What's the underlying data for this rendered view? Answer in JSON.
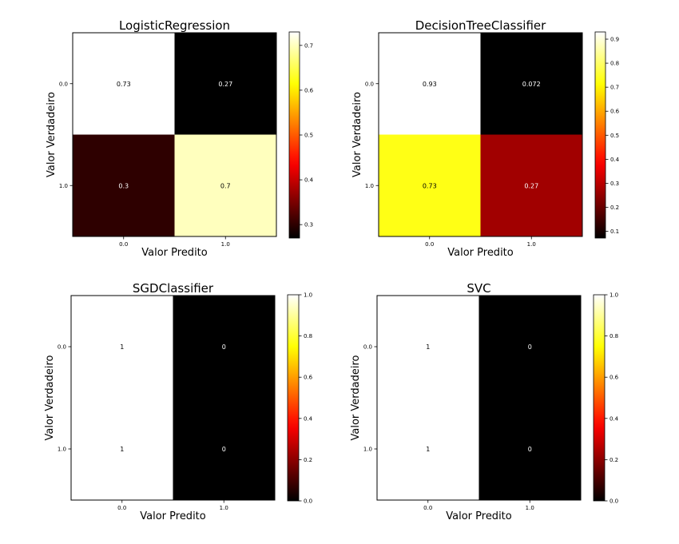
{
  "figure": {
    "xlabel": "Valor Predito",
    "ylabel": "Valor Verdadeiro"
  },
  "colormap": {
    "name": "hot",
    "stops": [
      "#000000",
      "#ff0000",
      "#ffff00",
      "#ffffff"
    ]
  },
  "chart_data": [
    {
      "type": "heatmap",
      "title": "LogisticRegression",
      "xlabel": "Valor Predito",
      "ylabel": "Valor Verdadeiro",
      "x_ticks": [
        "0.0",
        "1.0"
      ],
      "y_ticks": [
        "0.0",
        "1.0"
      ],
      "matrix": [
        [
          0.73,
          0.27
        ],
        [
          0.3,
          0.7
        ]
      ],
      "cell_labels": [
        [
          "0.73",
          "0.27"
        ],
        [
          "0.3",
          "0.7"
        ]
      ],
      "colorbar": {
        "vmin": 0.27,
        "vmax": 0.73,
        "ticks": [
          0.3,
          0.4,
          0.5,
          0.6,
          0.7
        ],
        "tick_labels": [
          "0.3",
          "0.4",
          "0.5",
          "0.6",
          "0.7"
        ]
      }
    },
    {
      "type": "heatmap",
      "title": "DecisionTreeClassifier",
      "xlabel": "Valor Predito",
      "ylabel": "Valor Verdadeiro",
      "x_ticks": [
        "0.0",
        "1.0"
      ],
      "y_ticks": [
        "0.0",
        "1.0"
      ],
      "matrix": [
        [
          0.93,
          0.072
        ],
        [
          0.73,
          0.27
        ]
      ],
      "cell_labels": [
        [
          "0.93",
          "0.072"
        ],
        [
          "0.73",
          "0.27"
        ]
      ],
      "colorbar": {
        "vmin": 0.072,
        "vmax": 0.93,
        "ticks": [
          0.1,
          0.2,
          0.3,
          0.4,
          0.5,
          0.6,
          0.7,
          0.8,
          0.9
        ],
        "tick_labels": [
          "0.1",
          "0.2",
          "0.3",
          "0.4",
          "0.5",
          "0.6",
          "0.7",
          "0.8",
          "0.9"
        ]
      }
    },
    {
      "type": "heatmap",
      "title": "SGDClassifier",
      "xlabel": "Valor Predito",
      "ylabel": "Valor Verdadeiro",
      "x_ticks": [
        "0.0",
        "1.0"
      ],
      "y_ticks": [
        "0.0",
        "1.0"
      ],
      "matrix": [
        [
          1,
          0
        ],
        [
          1,
          0
        ]
      ],
      "cell_labels": [
        [
          "1",
          "0"
        ],
        [
          "1",
          "0"
        ]
      ],
      "colorbar": {
        "vmin": 0,
        "vmax": 1,
        "ticks": [
          0.0,
          0.2,
          0.4,
          0.6,
          0.8,
          1.0
        ],
        "tick_labels": [
          "0.0",
          "0.2",
          "0.4",
          "0.6",
          "0.8",
          "1.0"
        ]
      }
    },
    {
      "type": "heatmap",
      "title": "SVC",
      "xlabel": "Valor Predito",
      "ylabel": "Valor Verdadeiro",
      "x_ticks": [
        "0.0",
        "1.0"
      ],
      "y_ticks": [
        "0.0",
        "1.0"
      ],
      "matrix": [
        [
          1,
          0
        ],
        [
          1,
          0
        ]
      ],
      "cell_labels": [
        [
          "1",
          "0"
        ],
        [
          "1",
          "0"
        ]
      ],
      "colorbar": {
        "vmin": 0,
        "vmax": 1,
        "ticks": [
          0.0,
          0.2,
          0.4,
          0.6,
          0.8,
          1.0
        ],
        "tick_labels": [
          "0.0",
          "0.2",
          "0.4",
          "0.6",
          "0.8",
          "1.0"
        ]
      }
    }
  ]
}
